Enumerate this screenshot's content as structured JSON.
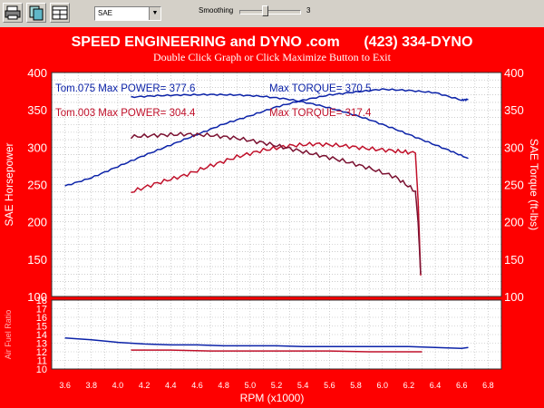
{
  "toolbar": {
    "buttons": [
      {
        "icon": "print-icon"
      },
      {
        "icon": "copy-icon"
      },
      {
        "icon": "grid-window-icon"
      }
    ],
    "units_select": {
      "value": "SAE"
    },
    "smoothing": {
      "label": "Smoothing",
      "value": "3",
      "level": 0.43
    }
  },
  "header": {
    "title": "SPEED ENGINEERING and DYNO .com      (423) 334-DYNO",
    "subtitle": "Double Click Graph or Click Maximize Button to Exit"
  },
  "colors": {
    "background": "#fe0000",
    "plot": "#ffffff",
    "run1": "#0b22a8",
    "run2_power": "#c0102a",
    "run2_torque": "#7a1030"
  },
  "legend": [
    {
      "run": "Tom.075",
      "power_label": "Max POWER=",
      "power": "377.6",
      "torque_label": "Max TORQUE=",
      "torque": "370.5",
      "color": "#0b22a8"
    },
    {
      "run": "Tom.003",
      "power_label": "Max POWER=",
      "power": "304.4",
      "torque_label": "Max TORQUE=",
      "torque": "317.4",
      "color": "#c0102a"
    }
  ],
  "chart_data": [
    {
      "type": "line",
      "ylabel_left": "SAE Horsepower",
      "ylabel_right": "SAE Torque (ft-lbs)",
      "ylim": [
        100,
        400
      ],
      "yticks": [
        "100",
        "150",
        "200",
        "250",
        "300",
        "350",
        "400"
      ],
      "xlim": [
        3.5,
        6.9
      ],
      "grid": true,
      "series": [
        {
          "name": "Tom.075",
          "quantity": "power",
          "color": "#0b22a8",
          "x": [
            3.6,
            3.8,
            4.0,
            4.2,
            4.4,
            4.6,
            4.8,
            5.0,
            5.2,
            5.4,
            5.6,
            5.8,
            6.0,
            6.2,
            6.4,
            6.6,
            6.65
          ],
          "y": [
            248,
            259,
            274,
            289,
            303,
            317,
            331,
            342,
            354,
            363,
            370,
            374,
            377.6,
            376,
            373,
            363,
            364
          ]
        },
        {
          "name": "Tom.075",
          "quantity": "torque",
          "color": "#0b22a8",
          "x": [
            4.1,
            4.3,
            4.5,
            4.7,
            4.9,
            5.1,
            5.3,
            5.5,
            5.7,
            5.9,
            6.1,
            6.3,
            6.5,
            6.65
          ],
          "y": [
            367,
            369,
            370,
            370.5,
            370,
            368,
            364,
            357,
            348,
            337,
            324,
            310,
            296,
            285
          ]
        },
        {
          "name": "Tom.003",
          "quantity": "power",
          "color": "#c0102a",
          "x": [
            4.1,
            4.3,
            4.5,
            4.7,
            4.9,
            5.1,
            5.3,
            5.5,
            5.7,
            5.9,
            6.1,
            6.25,
            6.27,
            6.29
          ],
          "y": [
            240,
            252,
            262,
            275,
            287,
            296,
            302,
            304.4,
            302,
            298,
            295,
            292,
            230,
            128
          ]
        },
        {
          "name": "Tom.003",
          "quantity": "torque",
          "color": "#7a1030",
          "x": [
            4.1,
            4.3,
            4.5,
            4.7,
            4.9,
            5.1,
            5.3,
            5.5,
            5.7,
            5.9,
            6.1,
            6.25,
            6.27,
            6.29
          ],
          "y": [
            314,
            316,
            317.4,
            316,
            312,
            306,
            298,
            290,
            282,
            272,
            260,
            241,
            200,
            130
          ]
        }
      ]
    },
    {
      "type": "line",
      "ylabel": "Air Fuel Ratio",
      "ylim": [
        10,
        18
      ],
      "yticks": [
        "10",
        "11",
        "12",
        "13",
        "14",
        "15",
        "16",
        "17",
        "18"
      ],
      "xlabel": "RPM (x1000)",
      "xlim": [
        3.5,
        6.9
      ],
      "xticks": [
        "3.6",
        "3.8",
        "4.0",
        "4.2",
        "4.4",
        "4.6",
        "4.8",
        "5.0",
        "5.2",
        "5.4",
        "5.6",
        "5.8",
        "6.0",
        "6.2",
        "6.4",
        "6.6",
        "6.8"
      ],
      "grid": true,
      "series": [
        {
          "name": "Tom.075",
          "color": "#0b22a8",
          "x": [
            3.6,
            3.8,
            4.0,
            4.2,
            4.4,
            4.6,
            4.8,
            5.0,
            5.2,
            5.4,
            5.6,
            5.8,
            6.0,
            6.2,
            6.4,
            6.6,
            6.65
          ],
          "y": [
            13.6,
            13.4,
            13.1,
            12.9,
            12.8,
            12.8,
            12.7,
            12.7,
            12.7,
            12.6,
            12.6,
            12.6,
            12.6,
            12.6,
            12.5,
            12.4,
            12.5
          ]
        },
        {
          "name": "Tom.003",
          "color": "#c0102a",
          "x": [
            4.1,
            4.4,
            4.7,
            5.0,
            5.3,
            5.6,
            5.9,
            6.2,
            6.3
          ],
          "y": [
            12.2,
            12.2,
            12.1,
            12.1,
            12.1,
            12.1,
            12.0,
            12.0,
            12.0
          ]
        }
      ]
    }
  ]
}
